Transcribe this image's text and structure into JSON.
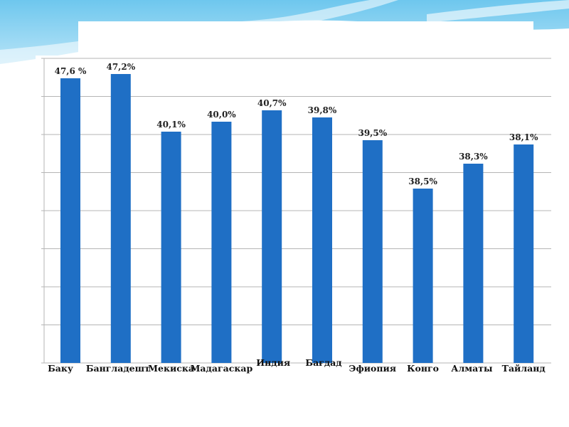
{
  "title": "",
  "colors": {
    "bar": "#1f6fc5",
    "grid": "#b5b5b5",
    "background_wave": "#5db8e6"
  },
  "chart_data": {
    "type": "bar",
    "categories": [
      "Баку",
      "Бангладешт",
      "Мекиска",
      "Мадагаскар",
      "Индия",
      "Бағдад",
      "Эфиопия",
      "Конго",
      "Алматы",
      "Тайланд"
    ],
    "values": [
      47.6,
      47.2,
      40.1,
      40.0,
      40.7,
      39.8,
      39.5,
      38.5,
      38.3,
      38.1
    ],
    "data_labels": [
      "47,6 %",
      "47,2%",
      "40,1%",
      "40,0%",
      "40,7%",
      "39,8%",
      "39,5%",
      "38,5%",
      "38,3%",
      "38,1%"
    ],
    "bar_heights": [
      400,
      406,
      325,
      339,
      355,
      345,
      313,
      245,
      280,
      307
    ],
    "title": "",
    "xlabel": "",
    "ylabel": "",
    "grid": true,
    "legend": "none"
  }
}
